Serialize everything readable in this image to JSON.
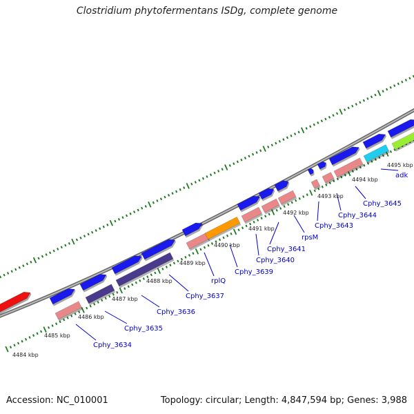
{
  "title": "Clostridium phytofermentans ISDg, complete genome",
  "footer": {
    "accession": "Accession: NC_010001",
    "summary": "Topology: circular; Length: 4,847,594 bp; Genes: 3,988"
  },
  "colors": {
    "backbone": "#8a8a8a",
    "ticks": "#1f7a1f",
    "gene_label": "#0000cc",
    "kbp_label": "#222222",
    "blue": "#1a1aee",
    "navy": "#4a3a8c",
    "pink": "#e88888",
    "orange": "#ff9900",
    "cyan": "#22ccee",
    "lime": "#99ee33",
    "red": "#ee1111"
  },
  "kbp_labels": [
    "4484 kbp",
    "4485 kbp",
    "4486 kbp",
    "4487 kbp",
    "4488 kbp",
    "4489 kbp",
    "4490 kbp",
    "4491 kbp",
    "4492 kbp",
    "4493 kbp",
    "4494 kbp",
    "4495 kbp"
  ],
  "genes": [
    {
      "id": "red-gene",
      "strand": "outer",
      "color": "red"
    },
    {
      "id": "g1",
      "strand": "outer",
      "color": "blue"
    },
    {
      "id": "g2",
      "strand": "outer",
      "color": "blue"
    },
    {
      "id": "g3",
      "strand": "outer",
      "color": "blue"
    },
    {
      "id": "g4",
      "strand": "outer",
      "color": "blue"
    },
    {
      "id": "g5",
      "strand": "outer",
      "color": "blue"
    },
    {
      "id": "g6",
      "strand": "outer",
      "color": "blue"
    },
    {
      "id": "g7",
      "strand": "outer",
      "color": "blue"
    },
    {
      "id": "g8",
      "strand": "outer",
      "color": "blue"
    },
    {
      "id": "g9",
      "strand": "outer",
      "color": "blue"
    },
    {
      "id": "g10",
      "strand": "outer",
      "color": "blue"
    },
    {
      "id": "g11",
      "strand": "outer",
      "color": "blue"
    },
    {
      "id": "g12",
      "strand": "outer",
      "color": "blue"
    },
    {
      "id": "g13",
      "strand": "outer",
      "color": "blue"
    }
  ],
  "gene_labels": [
    "Cphy_3634",
    "Cphy_3635",
    "Cphy_3636",
    "Cphy_3637",
    "rplQ",
    "Cphy_3639",
    "Cphy_3640",
    "Cphy_3641",
    "rpsM",
    "Cphy_3643",
    "Cphy_3644",
    "Cphy_3645",
    "adk"
  ]
}
